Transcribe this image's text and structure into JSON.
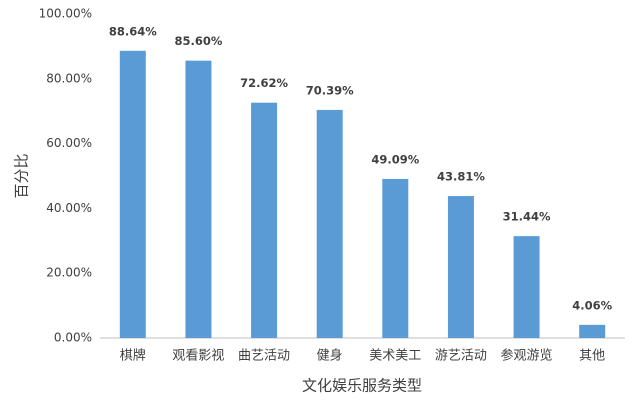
{
  "chart_data": {
    "type": "bar",
    "x_label": "文化娱乐服务类型",
    "y_label": "百分比",
    "categories": [
      "棋牌",
      "观看影视",
      "曲艺活动",
      "健身",
      "美术美工",
      "游艺活动",
      "参观游览",
      "其他"
    ],
    "values": [
      88.64,
      85.6,
      72.62,
      70.39,
      49.09,
      43.81,
      31.44,
      4.06
    ],
    "value_labels": [
      "88.64%",
      "85.60%",
      "72.62%",
      "70.39%",
      "49.09%",
      "43.81%",
      "31.44%",
      "4.06%"
    ],
    "color": "#5b9bd5",
    "ylim": [
      0,
      100
    ],
    "yticks": [
      {
        "value": 0,
        "label": "0.00%"
      },
      {
        "value": 20,
        "label": "20.00%"
      },
      {
        "value": 40,
        "label": "40.00%"
      },
      {
        "value": 60,
        "label": "60.00%"
      },
      {
        "value": 80,
        "label": "80.00%"
      },
      {
        "value": 100,
        "label": "100.00%"
      }
    ],
    "grid": false
  }
}
